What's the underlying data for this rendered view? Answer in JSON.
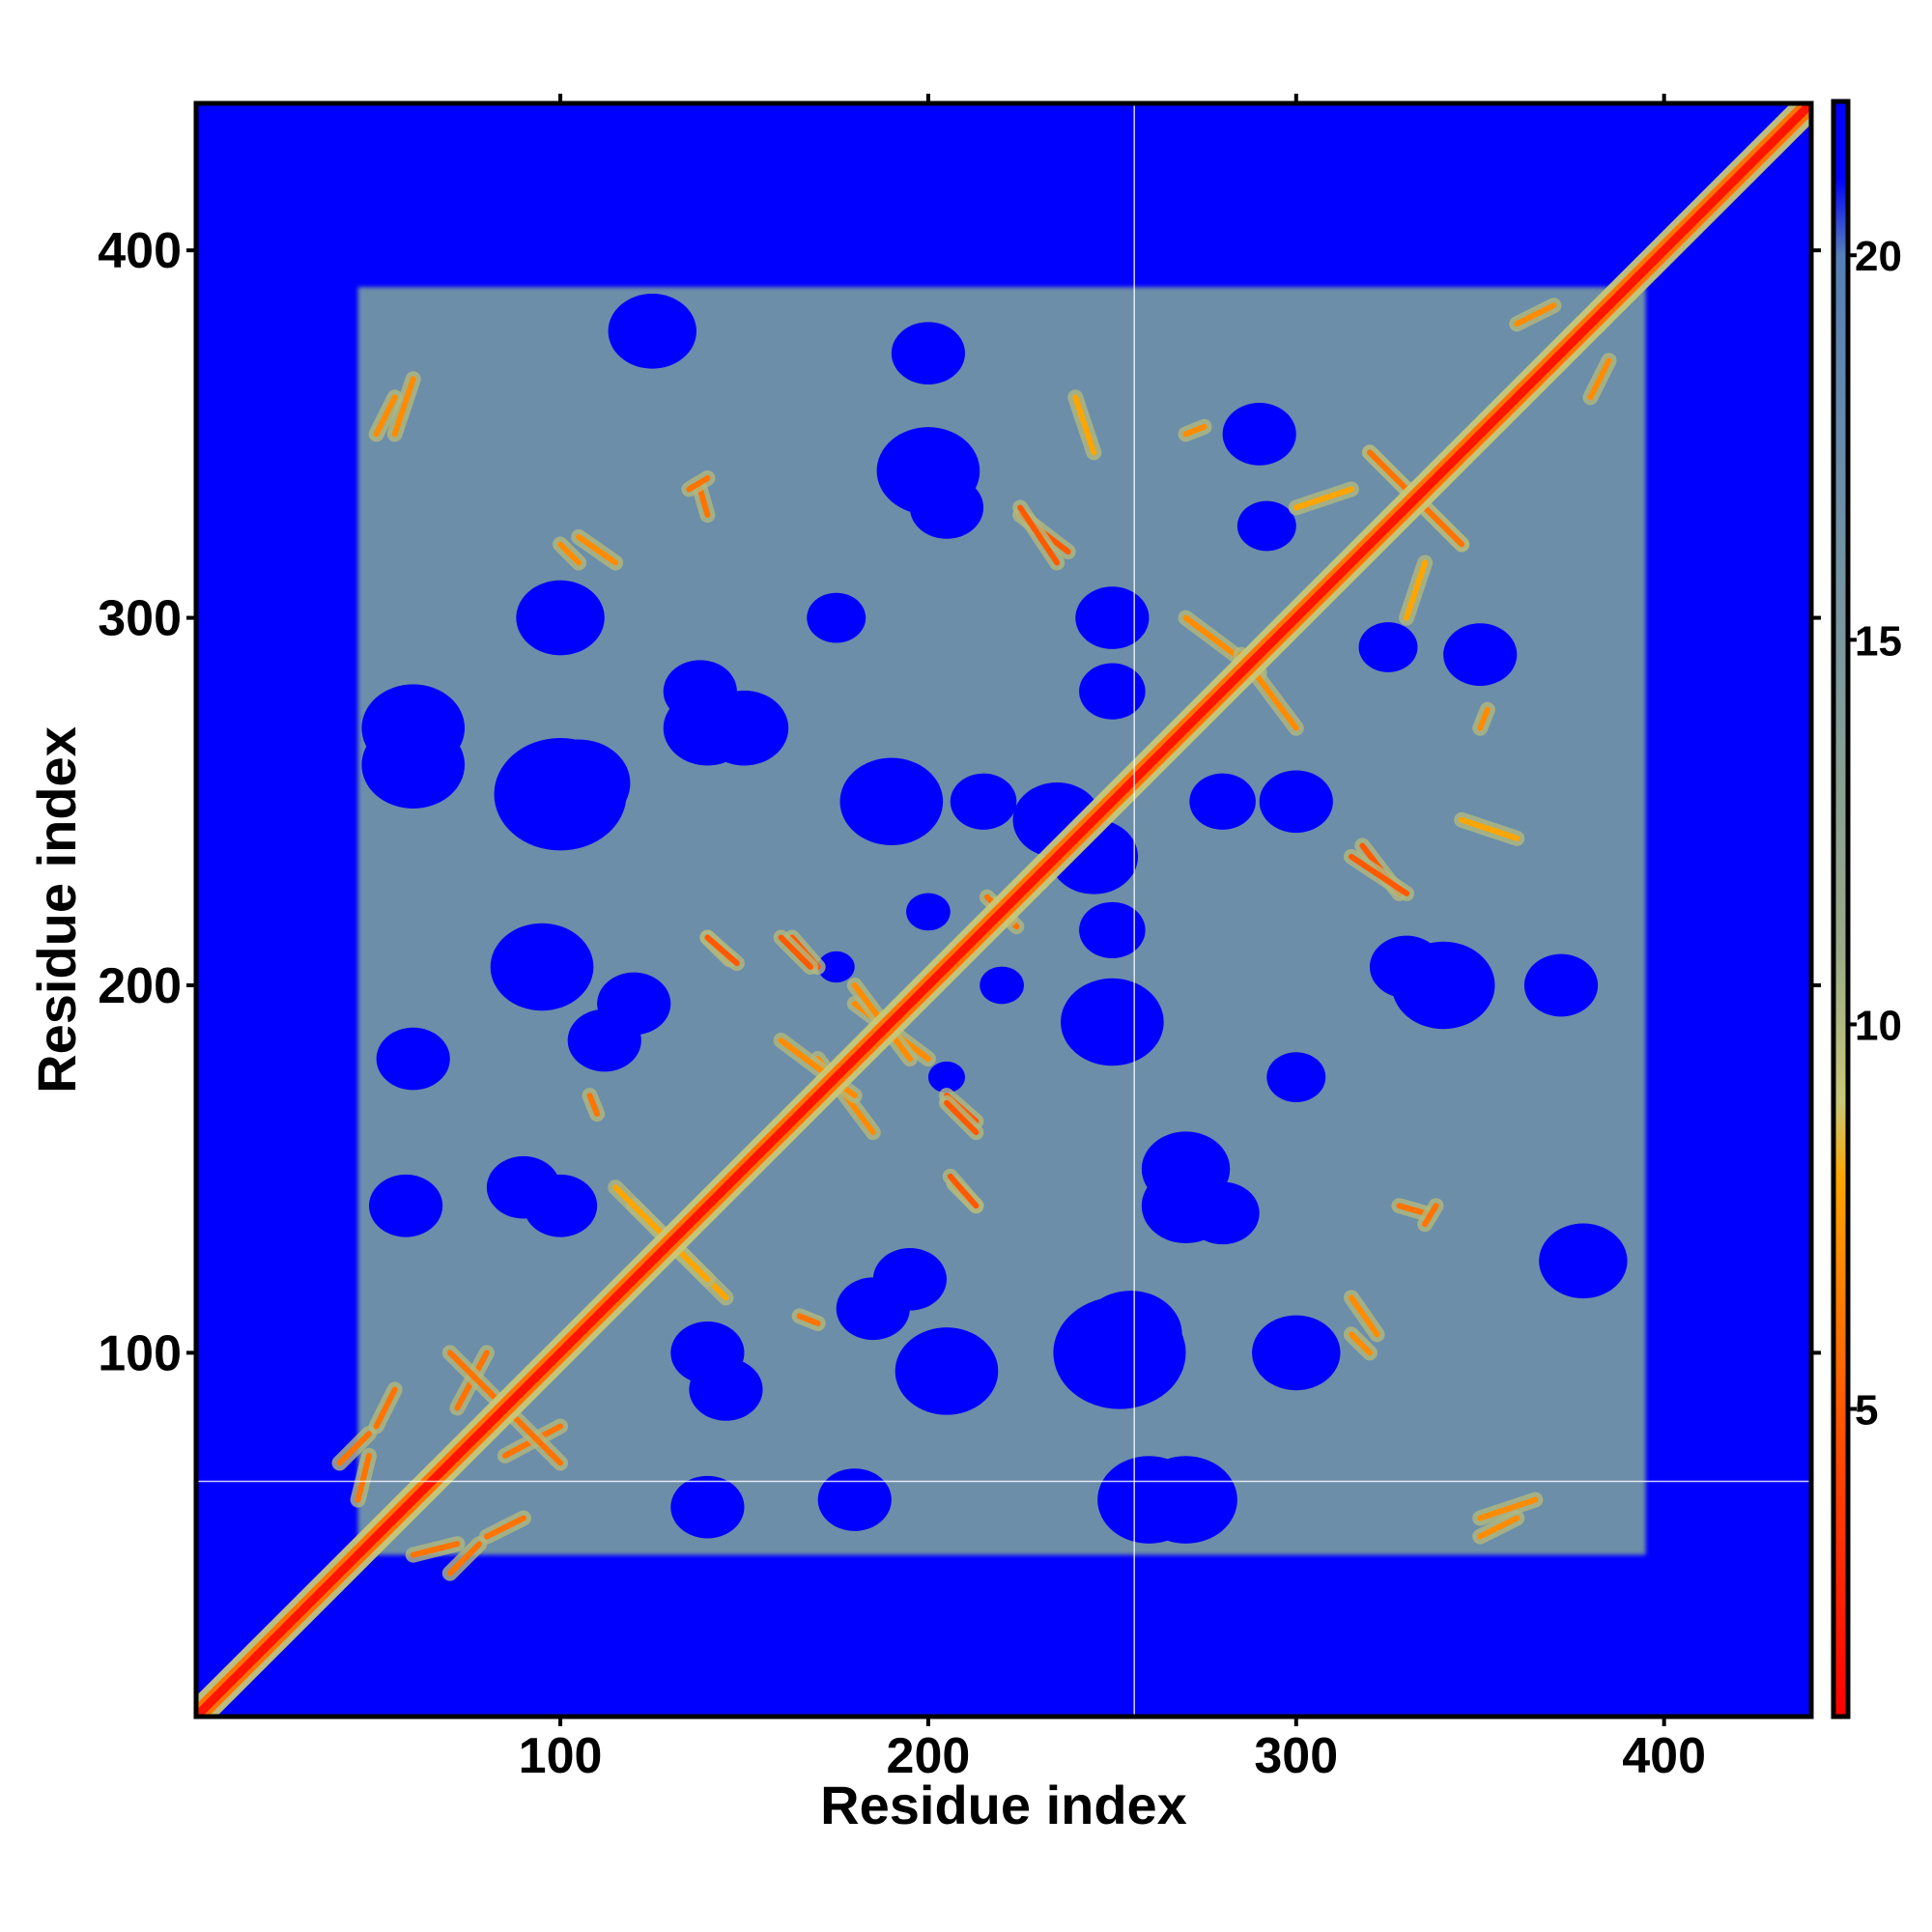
{
  "chart_data": {
    "type": "heatmap",
    "title": "",
    "xlabel": "Residue index",
    "ylabel": "Residue index",
    "n_residues": 440,
    "xlim": [
      1,
      440
    ],
    "ylim": [
      1,
      440
    ],
    "x_ticks": [
      100,
      200,
      300,
      400
    ],
    "y_ticks": [
      100,
      200,
      300,
      400
    ],
    "x_tick_labels": [
      "100",
      "200",
      "300",
      "400"
    ],
    "y_tick_labels": [
      "100",
      "200",
      "300",
      "400"
    ],
    "grid": false,
    "value_description": "pairwise residue distance",
    "colorbar": {
      "range": [
        1,
        22
      ],
      "ticks": [
        5,
        10,
        15,
        20
      ],
      "tick_labels": [
        "5",
        "10",
        "15",
        "20"
      ],
      "stops": [
        {
          "value": 1,
          "color": "#ff0000"
        },
        {
          "value": 4,
          "color": "#ff4000"
        },
        {
          "value": 8,
          "color": "#ffa500"
        },
        {
          "value": 9,
          "color": "#c8c878"
        },
        {
          "value": 11,
          "color": "#99aa88"
        },
        {
          "value": 20,
          "color": "#5580b8"
        },
        {
          "value": 21,
          "color": "#0000ff"
        }
      ]
    },
    "protein_region": {
      "x": [
        45,
        395
      ],
      "y": [
        45,
        390
      ],
      "value": 17
    },
    "background_value": 22,
    "diagonal": {
      "value": 2,
      "halo_value": 9,
      "halo_width": 2.5
    },
    "reference_lines": {
      "vertical_x": 256,
      "horizontal_y": 65
    },
    "contact_segments": [
      {
        "x0": 320,
        "y0": 345,
        "x1": 345,
        "y1": 320,
        "value": 6
      },
      {
        "x0": 318,
        "y0": 238,
        "x1": 328,
        "y1": 225,
        "value": 5
      },
      {
        "x0": 225,
        "y0": 330,
        "x1": 235,
        "y1": 315,
        "value": 5
      },
      {
        "x0": 180,
        "y0": 195,
        "x1": 200,
        "y1": 180,
        "value": 7
      },
      {
        "x0": 170,
        "y0": 180,
        "x1": 185,
        "y1": 160,
        "value": 7
      },
      {
        "x0": 163,
        "y0": 213,
        "x1": 170,
        "y1": 205,
        "value": 5
      },
      {
        "x0": 140,
        "y0": 213,
        "x1": 146,
        "y1": 207,
        "value": 6
      },
      {
        "x0": 205,
        "y0": 168,
        "x1": 213,
        "y1": 160,
        "value": 5
      },
      {
        "x0": 206,
        "y0": 148,
        "x1": 213,
        "y1": 140,
        "value": 5
      },
      {
        "x0": 120,
        "y0": 140,
        "x1": 145,
        "y1": 115,
        "value": 8
      },
      {
        "x0": 328,
        "y0": 140,
        "x1": 335,
        "y1": 138,
        "value": 6
      },
      {
        "x0": 315,
        "y0": 115,
        "x1": 322,
        "y1": 105,
        "value": 7
      },
      {
        "x0": 85,
        "y0": 72,
        "x1": 100,
        "y1": 80,
        "value": 6
      },
      {
        "x0": 70,
        "y0": 100,
        "x1": 82,
        "y1": 88,
        "value": 6
      },
      {
        "x0": 40,
        "y0": 70,
        "x1": 48,
        "y1": 78,
        "value": 6
      },
      {
        "x0": 60,
        "y0": 45,
        "x1": 72,
        "y1": 48,
        "value": 6
      },
      {
        "x0": 80,
        "y0": 50,
        "x1": 90,
        "y1": 55,
        "value": 6
      },
      {
        "x0": 350,
        "y0": 55,
        "x1": 365,
        "y1": 60,
        "value": 7
      },
      {
        "x0": 270,
        "y0": 300,
        "x1": 290,
        "y1": 285,
        "value": 7
      },
      {
        "x0": 300,
        "y0": 330,
        "x1": 315,
        "y1": 335,
        "value": 8
      },
      {
        "x0": 345,
        "y0": 245,
        "x1": 360,
        "y1": 240,
        "value": 8
      },
      {
        "x0": 100,
        "y0": 320,
        "x1": 105,
        "y1": 315,
        "value": 7
      },
      {
        "x0": 135,
        "y0": 335,
        "x1": 140,
        "y1": 338,
        "value": 6
      },
      {
        "x0": 50,
        "y0": 350,
        "x1": 55,
        "y1": 360,
        "value": 7
      },
      {
        "x0": 380,
        "y0": 360,
        "x1": 385,
        "y1": 370,
        "value": 7
      },
      {
        "x0": 165,
        "y0": 110,
        "x1": 170,
        "y1": 108,
        "value": 6
      },
      {
        "x0": 270,
        "y0": 350,
        "x1": 275,
        "y1": 352,
        "value": 7
      },
      {
        "x0": 218,
        "y0": 222,
        "x1": 224,
        "y1": 216,
        "value": 6
      }
    ],
    "high_distance_blobs": [
      {
        "x": 100,
        "y": 252,
        "r": 18
      },
      {
        "x": 150,
        "y": 270,
        "r": 12
      },
      {
        "x": 112,
        "y": 185,
        "r": 10
      },
      {
        "x": 95,
        "y": 205,
        "r": 14
      },
      {
        "x": 60,
        "y": 260,
        "r": 14
      },
      {
        "x": 58,
        "y": 140,
        "r": 10
      },
      {
        "x": 90,
        "y": 145,
        "r": 10
      },
      {
        "x": 140,
        "y": 100,
        "r": 10
      },
      {
        "x": 195,
        "y": 120,
        "r": 10
      },
      {
        "x": 215,
        "y": 250,
        "r": 9
      },
      {
        "x": 235,
        "y": 245,
        "r": 12
      },
      {
        "x": 250,
        "y": 190,
        "r": 14
      },
      {
        "x": 270,
        "y": 140,
        "r": 12
      },
      {
        "x": 255,
        "y": 105,
        "r": 14
      },
      {
        "x": 300,
        "y": 100,
        "r": 12
      },
      {
        "x": 270,
        "y": 60,
        "r": 14
      },
      {
        "x": 180,
        "y": 60,
        "r": 10
      },
      {
        "x": 300,
        "y": 250,
        "r": 10
      },
      {
        "x": 340,
        "y": 200,
        "r": 14
      },
      {
        "x": 378,
        "y": 125,
        "r": 12
      },
      {
        "x": 372,
        "y": 200,
        "r": 10
      },
      {
        "x": 350,
        "y": 290,
        "r": 10
      },
      {
        "x": 292,
        "y": 325,
        "r": 8
      },
      {
        "x": 205,
        "y": 330,
        "r": 10
      },
      {
        "x": 280,
        "y": 250,
        "r": 9
      },
      {
        "x": 175,
        "y": 300,
        "r": 8
      },
      {
        "x": 138,
        "y": 280,
        "r": 10
      },
      {
        "x": 220,
        "y": 200,
        "r": 6
      },
      {
        "x": 175,
        "y": 205,
        "r": 5
      }
    ]
  }
}
